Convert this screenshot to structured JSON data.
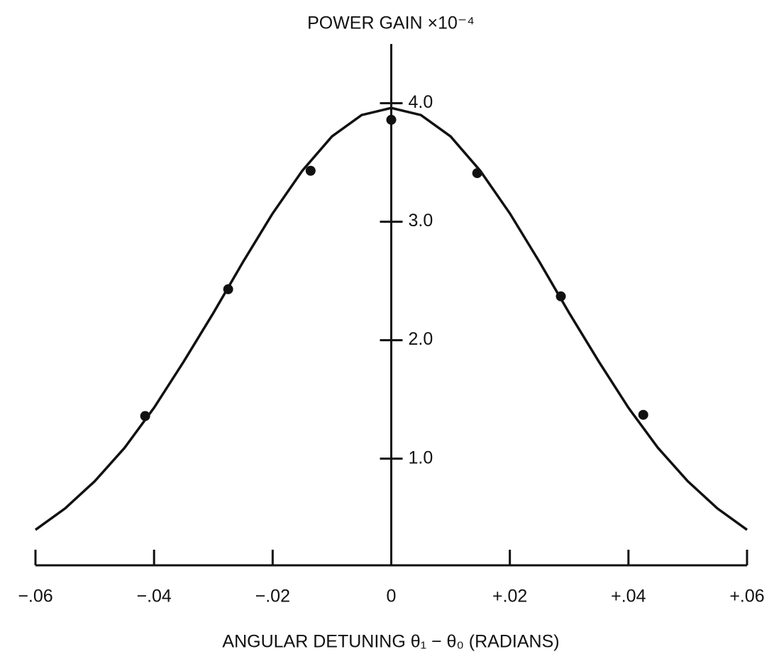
{
  "chart_data": {
    "type": "scatter",
    "y_label": "POWER GAIN ×10⁻⁴",
    "x_label": "ANGULAR DETUNING θ₁ − θ₀ (RADIANS)",
    "xlim": [
      -0.06,
      0.06
    ],
    "ylim": [
      0.1,
      4.5
    ],
    "xticks": [
      {
        "value": -0.06,
        "label": "−.06"
      },
      {
        "value": -0.04,
        "label": "−.04"
      },
      {
        "value": -0.02,
        "label": "−.02"
      },
      0,
      {
        "value": 0.02,
        "label": "+.02"
      },
      {
        "value": 0.04,
        "label": "+.04"
      },
      {
        "value": 0.06,
        "label": "+.06"
      }
    ],
    "yticks": [
      {
        "value": 1,
        "label": "1.0"
      },
      {
        "value": 2,
        "label": "2.0"
      },
      {
        "value": 3,
        "label": "3.0"
      },
      {
        "value": 4,
        "label": "4.0"
      }
    ],
    "color": "#111111",
    "points": {
      "x": [
        -0.0415,
        -0.0275,
        -0.0136,
        0,
        0.0145,
        0.0286,
        0.0425
      ],
      "values": [
        1.36,
        2.43,
        3.43,
        3.86,
        3.41,
        2.37,
        1.37
      ]
    },
    "curve": {
      "x": [
        -0.06,
        -0.055,
        -0.05,
        -0.045,
        -0.04,
        -0.035,
        -0.03,
        -0.025,
        -0.02,
        -0.015,
        -0.01,
        -0.005,
        0,
        0.005,
        0.01,
        0.015,
        0.02,
        0.025,
        0.03,
        0.035,
        0.04,
        0.045,
        0.05,
        0.055,
        0.06
      ],
      "values": [
        0.4,
        0.58,
        0.81,
        1.09,
        1.43,
        1.82,
        2.23,
        2.66,
        3.07,
        3.43,
        3.72,
        3.9,
        3.96,
        3.9,
        3.72,
        3.43,
        3.07,
        2.66,
        2.23,
        1.82,
        1.43,
        1.09,
        0.81,
        0.58,
        0.4
      ]
    }
  }
}
